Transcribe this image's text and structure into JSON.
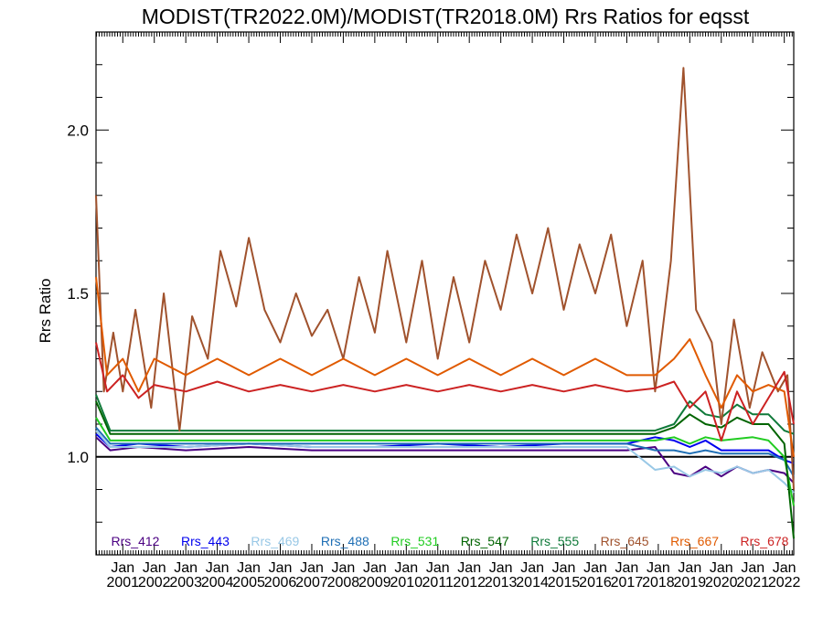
{
  "chart_data": {
    "type": "line",
    "title": "MODIST(TR2022.0M)/MODIST(TR2018.0M)  Rrs Ratios for eqsst",
    "ylabel": "Rrs Ratio",
    "xlabel": "",
    "xlim": [
      2000.15,
      2022.3
    ],
    "ylim": [
      0.7,
      2.3
    ],
    "y_ticks": [
      1.0,
      1.5,
      2.0
    ],
    "y_tick_labels": [
      "1.0",
      "1.5",
      "2.0"
    ],
    "x_tick_years": [
      2001,
      2002,
      2003,
      2004,
      2005,
      2006,
      2007,
      2008,
      2009,
      2010,
      2011,
      2012,
      2013,
      2014,
      2015,
      2016,
      2017,
      2018,
      2019,
      2020,
      2021,
      2022
    ],
    "x_tick_month": "Jan",
    "reference_line": 1.0,
    "legend_position": "bottom-inside",
    "grid": false,
    "series": [
      {
        "name": "Rrs_412",
        "color": "#4b0082",
        "points": [
          [
            2000.15,
            1.06
          ],
          [
            2000.6,
            1.02
          ],
          [
            2001.5,
            1.03
          ],
          [
            2003.0,
            1.02
          ],
          [
            2005.0,
            1.03
          ],
          [
            2007.0,
            1.02
          ],
          [
            2009.0,
            1.02
          ],
          [
            2011.0,
            1.02
          ],
          [
            2013.0,
            1.02
          ],
          [
            2015.0,
            1.02
          ],
          [
            2017.0,
            1.02
          ],
          [
            2017.9,
            1.03
          ],
          [
            2018.5,
            0.95
          ],
          [
            2019.0,
            0.94
          ],
          [
            2019.5,
            0.97
          ],
          [
            2020.0,
            0.94
          ],
          [
            2020.5,
            0.97
          ],
          [
            2021.0,
            0.95
          ],
          [
            2021.5,
            0.96
          ],
          [
            2022.0,
            0.95
          ],
          [
            2022.3,
            0.92
          ]
        ]
      },
      {
        "name": "Rrs_443",
        "color": "#0000ee",
        "points": [
          [
            2000.15,
            1.07
          ],
          [
            2000.6,
            1.03
          ],
          [
            2001.5,
            1.04
          ],
          [
            2003.0,
            1.03
          ],
          [
            2005.0,
            1.04
          ],
          [
            2007.0,
            1.03
          ],
          [
            2009.0,
            1.03
          ],
          [
            2011.0,
            1.04
          ],
          [
            2013.0,
            1.03
          ],
          [
            2015.0,
            1.04
          ],
          [
            2017.0,
            1.04
          ],
          [
            2017.9,
            1.06
          ],
          [
            2018.5,
            1.05
          ],
          [
            2019.0,
            1.03
          ],
          [
            2019.5,
            1.05
          ],
          [
            2020.0,
            1.02
          ],
          [
            2021.0,
            1.02
          ],
          [
            2021.5,
            1.02
          ],
          [
            2022.0,
            0.99
          ],
          [
            2022.3,
            0.98
          ]
        ]
      },
      {
        "name": "Rrs_469",
        "color": "#99c8e6",
        "points": [
          [
            2000.15,
            1.08
          ],
          [
            2000.6,
            1.03
          ],
          [
            2001.5,
            1.03
          ],
          [
            2003.0,
            1.03
          ],
          [
            2005.0,
            1.04
          ],
          [
            2007.0,
            1.03
          ],
          [
            2009.0,
            1.03
          ],
          [
            2011.0,
            1.03
          ],
          [
            2013.0,
            1.03
          ],
          [
            2015.0,
            1.03
          ],
          [
            2017.0,
            1.03
          ],
          [
            2017.9,
            0.96
          ],
          [
            2018.5,
            0.97
          ],
          [
            2019.0,
            0.94
          ],
          [
            2019.5,
            0.96
          ],
          [
            2020.0,
            0.95
          ],
          [
            2020.5,
            0.97
          ],
          [
            2021.0,
            0.95
          ],
          [
            2021.5,
            0.96
          ],
          [
            2022.0,
            0.92
          ],
          [
            2022.3,
            0.89
          ]
        ]
      },
      {
        "name": "Rrs_488",
        "color": "#1f6fb5",
        "points": [
          [
            2000.15,
            1.09
          ],
          [
            2000.6,
            1.04
          ],
          [
            2001.5,
            1.04
          ],
          [
            2003.0,
            1.04
          ],
          [
            2005.0,
            1.04
          ],
          [
            2007.0,
            1.04
          ],
          [
            2009.0,
            1.04
          ],
          [
            2011.0,
            1.04
          ],
          [
            2013.0,
            1.04
          ],
          [
            2015.0,
            1.04
          ],
          [
            2017.0,
            1.04
          ],
          [
            2017.9,
            1.02
          ],
          [
            2018.5,
            1.02
          ],
          [
            2019.0,
            1.01
          ],
          [
            2019.5,
            1.02
          ],
          [
            2020.0,
            1.01
          ],
          [
            2021.0,
            1.01
          ],
          [
            2021.5,
            1.01
          ],
          [
            2022.0,
            0.99
          ],
          [
            2022.3,
            0.94
          ]
        ]
      },
      {
        "name": "Rrs_531",
        "color": "#22cc22",
        "points": [
          [
            2000.15,
            1.12
          ],
          [
            2000.6,
            1.05
          ],
          [
            2001.5,
            1.05
          ],
          [
            2003.0,
            1.05
          ],
          [
            2005.0,
            1.05
          ],
          [
            2007.0,
            1.05
          ],
          [
            2009.0,
            1.05
          ],
          [
            2011.0,
            1.05
          ],
          [
            2013.0,
            1.05
          ],
          [
            2015.0,
            1.05
          ],
          [
            2017.0,
            1.05
          ],
          [
            2017.9,
            1.05
          ],
          [
            2018.5,
            1.06
          ],
          [
            2019.0,
            1.04
          ],
          [
            2019.5,
            1.06
          ],
          [
            2020.0,
            1.05
          ],
          [
            2021.0,
            1.06
          ],
          [
            2021.5,
            1.05
          ],
          [
            2022.0,
            1.0
          ],
          [
            2022.3,
            0.85
          ]
        ]
      },
      {
        "name": "Rrs_547",
        "color": "#006400",
        "points": [
          [
            2000.15,
            1.17
          ],
          [
            2000.6,
            1.07
          ],
          [
            2001.5,
            1.07
          ],
          [
            2003.0,
            1.07
          ],
          [
            2005.0,
            1.07
          ],
          [
            2007.0,
            1.07
          ],
          [
            2009.0,
            1.07
          ],
          [
            2011.0,
            1.07
          ],
          [
            2013.0,
            1.07
          ],
          [
            2015.0,
            1.07
          ],
          [
            2017.0,
            1.07
          ],
          [
            2017.9,
            1.07
          ],
          [
            2018.5,
            1.09
          ],
          [
            2019.0,
            1.13
          ],
          [
            2019.5,
            1.1
          ],
          [
            2020.0,
            1.09
          ],
          [
            2020.5,
            1.12
          ],
          [
            2021.0,
            1.1
          ],
          [
            2021.5,
            1.1
          ],
          [
            2022.0,
            1.04
          ],
          [
            2022.3,
            0.75
          ]
        ]
      },
      {
        "name": "Rrs_555",
        "color": "#107a3a",
        "points": [
          [
            2000.15,
            1.19
          ],
          [
            2000.6,
            1.08
          ],
          [
            2001.5,
            1.08
          ],
          [
            2003.0,
            1.08
          ],
          [
            2005.0,
            1.08
          ],
          [
            2007.0,
            1.08
          ],
          [
            2009.0,
            1.08
          ],
          [
            2011.0,
            1.08
          ],
          [
            2013.0,
            1.08
          ],
          [
            2015.0,
            1.08
          ],
          [
            2017.0,
            1.08
          ],
          [
            2017.9,
            1.08
          ],
          [
            2018.5,
            1.1
          ],
          [
            2019.0,
            1.17
          ],
          [
            2019.5,
            1.13
          ],
          [
            2020.0,
            1.12
          ],
          [
            2020.5,
            1.16
          ],
          [
            2021.0,
            1.13
          ],
          [
            2021.5,
            1.13
          ],
          [
            2022.0,
            1.08
          ],
          [
            2022.3,
            1.07
          ]
        ]
      },
      {
        "name": "Rrs_645",
        "color": "#a0522d",
        "points": [
          [
            2000.15,
            1.8
          ],
          [
            2000.4,
            1.2
          ],
          [
            2000.7,
            1.38
          ],
          [
            2001.0,
            1.2
          ],
          [
            2001.4,
            1.45
          ],
          [
            2001.9,
            1.15
          ],
          [
            2002.3,
            1.5
          ],
          [
            2002.8,
            1.08
          ],
          [
            2003.2,
            1.43
          ],
          [
            2003.7,
            1.3
          ],
          [
            2004.1,
            1.63
          ],
          [
            2004.6,
            1.46
          ],
          [
            2005.0,
            1.67
          ],
          [
            2005.5,
            1.45
          ],
          [
            2006.0,
            1.35
          ],
          [
            2006.5,
            1.5
          ],
          [
            2007.0,
            1.37
          ],
          [
            2007.5,
            1.45
          ],
          [
            2008.0,
            1.3
          ],
          [
            2008.5,
            1.55
          ],
          [
            2009.0,
            1.38
          ],
          [
            2009.4,
            1.63
          ],
          [
            2010.0,
            1.35
          ],
          [
            2010.5,
            1.6
          ],
          [
            2011.0,
            1.3
          ],
          [
            2011.5,
            1.55
          ],
          [
            2012.0,
            1.35
          ],
          [
            2012.5,
            1.6
          ],
          [
            2013.0,
            1.45
          ],
          [
            2013.5,
            1.68
          ],
          [
            2014.0,
            1.5
          ],
          [
            2014.5,
            1.7
          ],
          [
            2015.0,
            1.45
          ],
          [
            2015.5,
            1.65
          ],
          [
            2016.0,
            1.5
          ],
          [
            2016.5,
            1.68
          ],
          [
            2017.0,
            1.4
          ],
          [
            2017.5,
            1.6
          ],
          [
            2017.9,
            1.2
          ],
          [
            2018.4,
            1.6
          ],
          [
            2018.8,
            2.19
          ],
          [
            2019.2,
            1.45
          ],
          [
            2019.7,
            1.35
          ],
          [
            2020.0,
            1.1
          ],
          [
            2020.4,
            1.42
          ],
          [
            2020.9,
            1.15
          ],
          [
            2021.3,
            1.32
          ],
          [
            2021.8,
            1.2
          ],
          [
            2022.1,
            1.25
          ],
          [
            2022.3,
            0.9
          ]
        ]
      },
      {
        "name": "Rrs_667",
        "color": "#e05a00",
        "points": [
          [
            2000.15,
            1.55
          ],
          [
            2000.5,
            1.25
          ],
          [
            2001.0,
            1.3
          ],
          [
            2001.5,
            1.2
          ],
          [
            2002.0,
            1.3
          ],
          [
            2003.0,
            1.25
          ],
          [
            2004.0,
            1.3
          ],
          [
            2005.0,
            1.25
          ],
          [
            2006.0,
            1.3
          ],
          [
            2007.0,
            1.25
          ],
          [
            2008.0,
            1.3
          ],
          [
            2009.0,
            1.25
          ],
          [
            2010.0,
            1.3
          ],
          [
            2011.0,
            1.25
          ],
          [
            2012.0,
            1.3
          ],
          [
            2013.0,
            1.25
          ],
          [
            2014.0,
            1.3
          ],
          [
            2015.0,
            1.25
          ],
          [
            2016.0,
            1.3
          ],
          [
            2017.0,
            1.25
          ],
          [
            2017.9,
            1.25
          ],
          [
            2018.5,
            1.3
          ],
          [
            2019.0,
            1.36
          ],
          [
            2019.5,
            1.25
          ],
          [
            2020.0,
            1.15
          ],
          [
            2020.5,
            1.25
          ],
          [
            2021.0,
            1.2
          ],
          [
            2021.5,
            1.22
          ],
          [
            2022.0,
            1.2
          ],
          [
            2022.3,
            1.0
          ]
        ]
      },
      {
        "name": "Rrs_678",
        "color": "#cc2222",
        "points": [
          [
            2000.15,
            1.35
          ],
          [
            2000.5,
            1.2
          ],
          [
            2001.0,
            1.25
          ],
          [
            2001.5,
            1.18
          ],
          [
            2002.0,
            1.22
          ],
          [
            2003.0,
            1.2
          ],
          [
            2004.0,
            1.23
          ],
          [
            2005.0,
            1.2
          ],
          [
            2006.0,
            1.22
          ],
          [
            2007.0,
            1.2
          ],
          [
            2008.0,
            1.22
          ],
          [
            2009.0,
            1.2
          ],
          [
            2010.0,
            1.22
          ],
          [
            2011.0,
            1.2
          ],
          [
            2012.0,
            1.22
          ],
          [
            2013.0,
            1.2
          ],
          [
            2014.0,
            1.22
          ],
          [
            2015.0,
            1.2
          ],
          [
            2016.0,
            1.22
          ],
          [
            2017.0,
            1.2
          ],
          [
            2017.9,
            1.21
          ],
          [
            2018.5,
            1.23
          ],
          [
            2019.0,
            1.15
          ],
          [
            2019.5,
            1.2
          ],
          [
            2020.0,
            1.05
          ],
          [
            2020.5,
            1.2
          ],
          [
            2021.0,
            1.1
          ],
          [
            2021.5,
            1.18
          ],
          [
            2022.0,
            1.26
          ],
          [
            2022.3,
            1.1
          ]
        ]
      }
    ]
  }
}
